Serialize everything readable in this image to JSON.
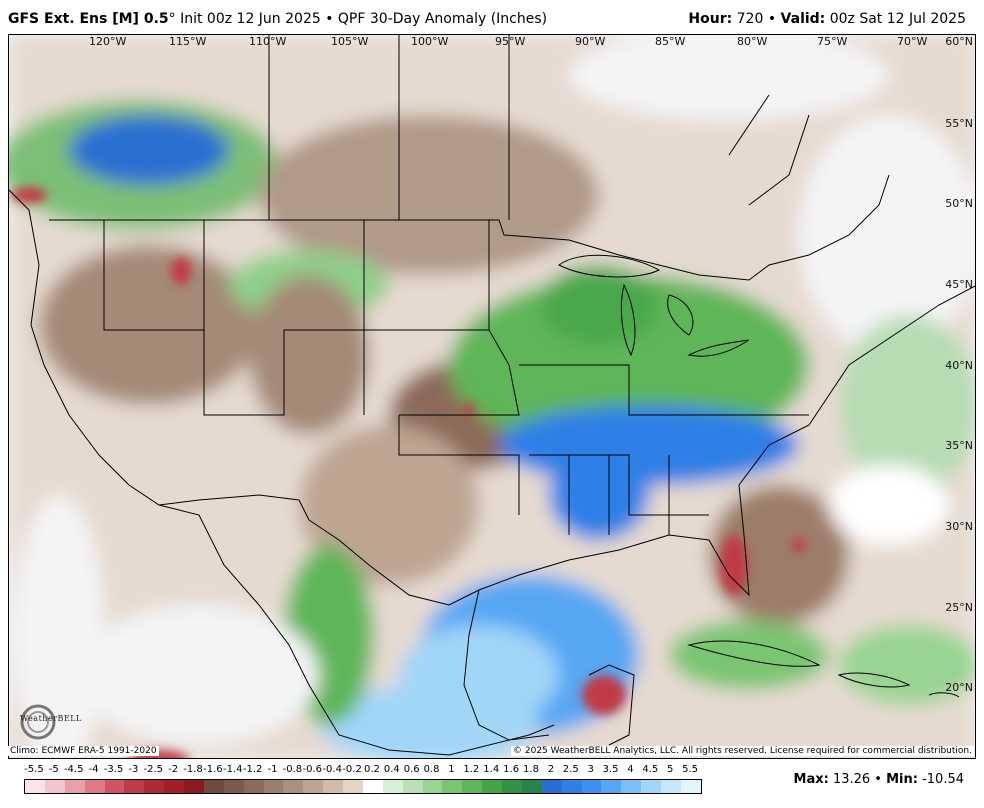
{
  "header": {
    "model": "GFS Ext.  Ens [M] 0.5",
    "degree": "°",
    "description": " Init 00z 12 Jun 2025 • QPF 30-Day Anomaly (Inches)",
    "hour_label": "Hour:",
    "hour_value": " 720 • ",
    "valid_label": "Valid:",
    "valid_value": " 00z Sat 12 Jul 2025"
  },
  "longitude_labels": [
    "120°W",
    "115°W",
    "110°W",
    "105°W",
    "100°W",
    "95°W",
    "90°W",
    "85°W",
    "80°W",
    "75°W",
    "70°W"
  ],
  "latitude_labels": [
    "60°N",
    "55°N",
    "50°N",
    "45°N",
    "40°N",
    "35°N",
    "30°N",
    "25°N",
    "20°N"
  ],
  "climo_note": "Climo: ECMWF ERA-5 1991-2020",
  "copyright": "© 2025 WeatherBELL Analytics, LLC. All rights reserved. License required for commercial distribution.",
  "logo_text": "WeatherBELL",
  "legend": {
    "ticks": [
      "-5.5",
      "-5",
      "-4.5",
      "-4",
      "-3.5",
      "-3",
      "-2.5",
      "-2",
      "-1.8",
      "-1.6",
      "-1.4",
      "-1.2",
      "-1",
      "-0.8",
      "-0.6",
      "-0.4",
      "-0.2",
      "0.2",
      "0.4",
      "0.6",
      "0.8",
      "1",
      "1.2",
      "1.4",
      "1.6",
      "1.8",
      "2",
      "2.5",
      "3",
      "3.5",
      "4",
      "4.5",
      "5",
      "5.5"
    ],
    "colors": [
      "#fbe4e8",
      "#f3c4cb",
      "#e8a0aa",
      "#dc7a86",
      "#cf5563",
      "#c13a47",
      "#b02a35",
      "#a01f28",
      "#8a1c20",
      "#6e4a40",
      "#7c5a4c",
      "#8c6b5a",
      "#9c7d69",
      "#ad907b",
      "#c0a48f",
      "#d3baa5",
      "#e7d3c3",
      "#ffffff",
      "#d6efd6",
      "#b7e2b4",
      "#98d492",
      "#7ac572",
      "#5eb658",
      "#45a545",
      "#2f9444",
      "#27844a",
      "#2a6fd0",
      "#2f7fe6",
      "#3d8ff0",
      "#57a6f3",
      "#7cbff6",
      "#a1d6f8",
      "#c4e8fa",
      "#dff5fc"
    ]
  },
  "stats": {
    "max_label": "Max:",
    "max_value": " 13.26 • ",
    "min_label": "Min:",
    "min_value": " -10.54"
  }
}
